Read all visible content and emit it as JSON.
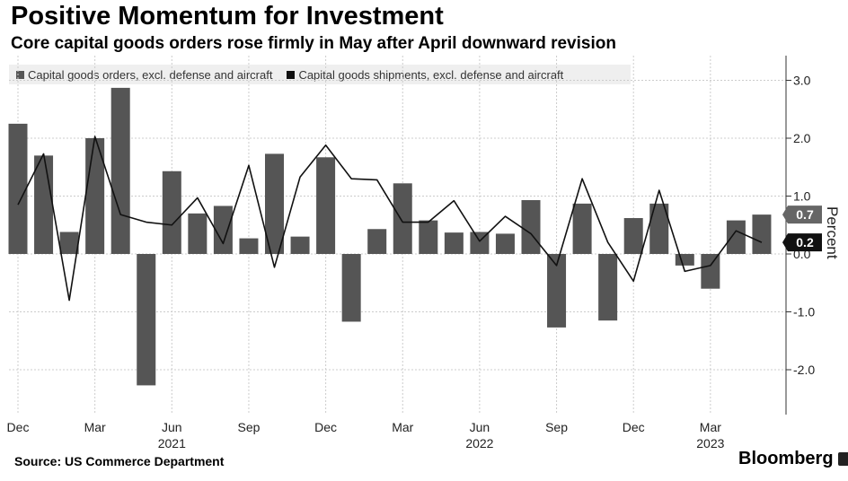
{
  "header": {
    "title": "Positive Momentum for Investment",
    "subtitle": "Core capital goods orders rose firmly in May after April downward revision"
  },
  "footer": {
    "source": "Source: US Commerce Department",
    "brand": "Bloomberg"
  },
  "colors": {
    "bars": "#555555",
    "line": "#111111",
    "grid": "#cccccc",
    "legend_bg": "#efefef"
  },
  "chart_data": {
    "type": "bar",
    "title": "Positive Momentum for Investment",
    "subtitle": "Core capital goods orders rose firmly in May after April downward revision",
    "ylabel": "Percent",
    "ylim": [
      -2.75,
      3.3
    ],
    "yticks": [
      3.0,
      2.0,
      1.0,
      0.0,
      -1.0,
      -2.0
    ],
    "ytick_labels": [
      "3.0",
      "2.0",
      "1.0",
      "0.0",
      "-1.0",
      "-2.0"
    ],
    "grid": true,
    "legend_position": "top-left",
    "x": [
      "2020-12",
      "2021-01",
      "2021-02",
      "2021-03",
      "2021-04",
      "2021-05",
      "2021-06",
      "2021-07",
      "2021-08",
      "2021-09",
      "2021-10",
      "2021-11",
      "2021-12",
      "2022-01",
      "2022-02",
      "2022-03",
      "2022-04",
      "2022-05",
      "2022-06",
      "2022-07",
      "2022-08",
      "2022-09",
      "2022-10",
      "2022-11",
      "2022-12",
      "2023-01",
      "2023-02",
      "2023-03",
      "2023-04",
      "2023-05"
    ],
    "xtick_labels": [
      {
        "month": "Dec",
        "year": ""
      },
      {
        "month": "Mar",
        "year": ""
      },
      {
        "month": "Jun",
        "year": "2021"
      },
      {
        "month": "Sep",
        "year": ""
      },
      {
        "month": "Dec",
        "year": ""
      },
      {
        "month": "Mar",
        "year": ""
      },
      {
        "month": "Jun",
        "year": "2022"
      },
      {
        "month": "Sep",
        "year": ""
      },
      {
        "month": "Dec",
        "year": ""
      },
      {
        "month": "Mar",
        "year": "2023"
      }
    ],
    "series": [
      {
        "name": "Capital goods orders, excl. defense and aircraft",
        "kind": "bar",
        "values": [
          2.25,
          1.7,
          0.38,
          2.0,
          2.87,
          -2.27,
          1.43,
          0.7,
          0.83,
          0.27,
          1.73,
          0.3,
          1.67,
          -1.17,
          0.43,
          1.22,
          0.58,
          0.37,
          0.38,
          0.35,
          0.93,
          -1.27,
          0.87,
          -1.15,
          0.62,
          0.87,
          -0.2,
          -0.6,
          0.58,
          0.68
        ]
      },
      {
        "name": "Capital goods shipments, excl. defense and aircraft",
        "kind": "line",
        "values": [
          0.85,
          1.73,
          -0.8,
          2.03,
          0.68,
          0.55,
          0.5,
          0.97,
          0.18,
          1.53,
          -0.23,
          1.33,
          1.88,
          1.3,
          1.28,
          0.55,
          0.55,
          0.92,
          0.22,
          0.65,
          0.35,
          -0.2,
          1.3,
          0.2,
          -0.47,
          1.1,
          -0.3,
          -0.2,
          0.4,
          0.2
        ]
      }
    ],
    "end_labels": [
      {
        "series": "bars",
        "text": "0.7"
      },
      {
        "series": "line",
        "text": "0.2"
      }
    ]
  }
}
